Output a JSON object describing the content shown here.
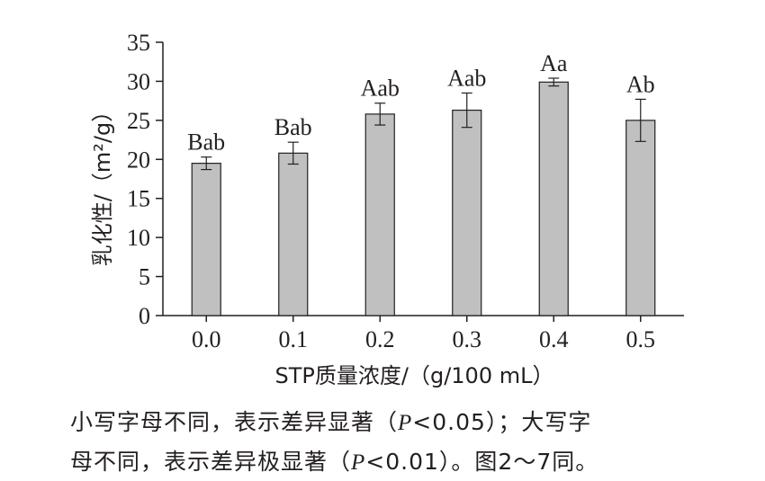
{
  "chart_data": {
    "type": "bar",
    "xlabel": "STP质量浓度/（g/100 mL）",
    "ylabel": "乳化性/（m²/g）",
    "ylim": [
      0,
      35
    ],
    "yticks": [
      "0",
      "5",
      "10",
      "15",
      "20",
      "25",
      "30",
      "35"
    ],
    "categories": [
      "0.0",
      "0.1",
      "0.2",
      "0.3",
      "0.4",
      "0.5"
    ],
    "values": [
      19.5,
      20.8,
      25.8,
      26.3,
      29.9,
      25.0
    ],
    "errors": [
      0.8,
      1.4,
      1.4,
      2.2,
      0.5,
      2.7
    ],
    "significance_labels": [
      "Bab",
      "Bab",
      "Aab",
      "Aab",
      "Aa",
      "Ab"
    ],
    "bar_color": "#c0c0c0",
    "grid": false
  },
  "caption": {
    "line1_pre": "小写字母不同，表示差异显著（",
    "line1_p": "P",
    "line1_post": "<0.05）；大写字",
    "line2_pre": "母不同，表示差异极显著（",
    "line2_p": "P",
    "line2_post": "<0.01）。图2～7同。"
  }
}
